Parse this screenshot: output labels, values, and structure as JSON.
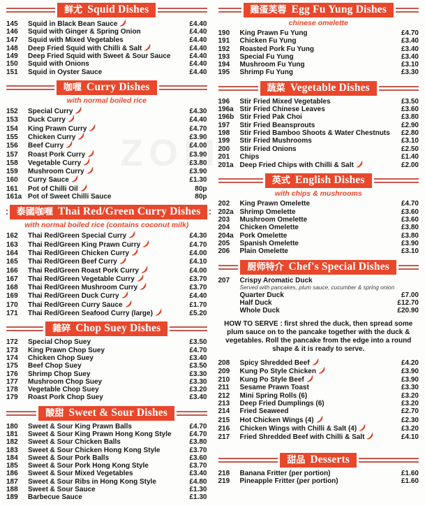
{
  "watermark": "ZOM",
  "colors": {
    "banner_red": "#e8472b",
    "rule_red": "#c4584c",
    "subtitle_red": "#e8472b",
    "chilli_red": "#dd3b1f",
    "text": "#161616"
  },
  "icons": {
    "chilli": "chilli-icon (red chilli pepper = spicy dish)"
  },
  "columns": [
    {
      "name": "left",
      "sections": [
        {
          "id": "squid",
          "zh": "鲜尤",
          "en": "Squid Dishes",
          "entries": [
            {
              "type": "item",
              "num": "145",
              "name": "Squid in Black Bean Sauce",
              "chilli": true,
              "price": "£4.40"
            },
            {
              "type": "item",
              "num": "146",
              "name": "Squid with Ginger & Spring Onion",
              "chilli": false,
              "price": "£4.40"
            },
            {
              "type": "item",
              "num": "147",
              "name": "Squid with Mixed Vegetables",
              "chilli": false,
              "price": "£4.40"
            },
            {
              "type": "item",
              "num": "148",
              "name": "Deep Fried Squid with Chilli & Salt",
              "chilli": true,
              "price": "£4.40"
            },
            {
              "type": "item",
              "num": "149",
              "name": "Deep Fried Squid with Sweet & Sour Sauce",
              "chilli": false,
              "price": "£4.40"
            },
            {
              "type": "item",
              "num": "150",
              "name": "Squid with Onions",
              "chilli": false,
              "price": "£4.40"
            },
            {
              "type": "item",
              "num": "151",
              "name": "Squid in Oyster Sauce",
              "chilli": false,
              "price": "£4.40"
            }
          ]
        },
        {
          "id": "curry",
          "zh": "咖喱",
          "en": "Curry Dishes",
          "subtitle": "with normal boiled rice",
          "entries": [
            {
              "type": "item",
              "num": "152",
              "name": "Special Curry",
              "chilli": true,
              "price": "£4.30"
            },
            {
              "type": "item",
              "num": "153",
              "name": "Duck Curry",
              "chilli": true,
              "price": "£4.40"
            },
            {
              "type": "item",
              "num": "154",
              "name": "King Prawn Curry",
              "chilli": true,
              "price": "£4.70"
            },
            {
              "type": "item",
              "num": "155",
              "name": "Chicken Curry",
              "chilli": true,
              "price": "£3.90"
            },
            {
              "type": "item",
              "num": "156",
              "name": "Beef Curry",
              "chilli": true,
              "price": "£4.00"
            },
            {
              "type": "item",
              "num": "157",
              "name": "Roast Pork Curry",
              "chilli": true,
              "price": "£3.90"
            },
            {
              "type": "item",
              "num": "158",
              "name": "Vegetable Curry",
              "chilli": true,
              "price": "£3.80"
            },
            {
              "type": "item",
              "num": "159",
              "name": "Mushroom Curry",
              "chilli": true,
              "price": "£3.90"
            },
            {
              "type": "item",
              "num": "160",
              "name": "Curry Sauce",
              "chilli": true,
              "price": "£1.30"
            },
            {
              "type": "item",
              "num": "161",
              "name": "Pot of Chilli Oil",
              "chilli": true,
              "price": "80p"
            },
            {
              "type": "item",
              "num": "161a",
              "name": "Pot of Sweet Chilli Sauce",
              "chilli": false,
              "price": "80p"
            }
          ]
        },
        {
          "id": "thai-curry",
          "zh": "泰國咖喱",
          "en": "Thai Red/Green Curry Dishes",
          "subtitle": "with normal boiled rice (contains coconut milk)",
          "entries": [
            {
              "type": "item",
              "num": "162",
              "name": "Thai Red/Green Special Curry",
              "chilli": true,
              "price": "£4.30"
            },
            {
              "type": "item",
              "num": "163",
              "name": "Thai Red/Green King Prawn Curry",
              "chilli": true,
              "price": "£4.70"
            },
            {
              "type": "item",
              "num": "164",
              "name": "Thai Red/Green Chicken Curry",
              "chilli": true,
              "price": "£4.00"
            },
            {
              "type": "item",
              "num": "165",
              "name": "Thai Red/Green Beef Curry",
              "chilli": true,
              "price": "£4.10"
            },
            {
              "type": "item",
              "num": "166",
              "name": "Thai Red/Green Roast Pork Curry",
              "chilli": true,
              "price": "£4.00"
            },
            {
              "type": "item",
              "num": "167",
              "name": "Thai Red/Green Vegetable Curry",
              "chilli": true,
              "price": "£3.70"
            },
            {
              "type": "item",
              "num": "168",
              "name": "Thai Red/Green Mushroom Curry",
              "chilli": true,
              "price": "£3.70"
            },
            {
              "type": "item",
              "num": "169",
              "name": "Thai Red/Green Duck Curry",
              "chilli": true,
              "price": "£4.40"
            },
            {
              "type": "item",
              "num": "170",
              "name": "Thai Red/Green Curry Sauce",
              "chilli": true,
              "price": "£1.70"
            },
            {
              "type": "item",
              "num": "171",
              "name": "Thai Red/Green Seafood Curry (large)",
              "chilli": true,
              "price": "£5.20"
            }
          ]
        },
        {
          "id": "chop-suey",
          "zh": "雜碎",
          "en": "Chop Suey Dishes",
          "entries": [
            {
              "type": "item",
              "num": "172",
              "name": "Special Chop Suey",
              "chilli": false,
              "price": "£3.50"
            },
            {
              "type": "item",
              "num": "173",
              "name": "King Prawn Chop Suey",
              "chilli": false,
              "price": "£4.70"
            },
            {
              "type": "item",
              "num": "174",
              "name": "Chicken Chop Suey",
              "chilli": false,
              "price": "£3.40"
            },
            {
              "type": "item",
              "num": "175",
              "name": "Beef Chop Suey",
              "chilli": false,
              "price": "£3.50"
            },
            {
              "type": "item",
              "num": "176",
              "name": "Shrimp Chop Suey",
              "chilli": false,
              "price": "£3.30"
            },
            {
              "type": "item",
              "num": "177",
              "name": "Mushroom Chop Suey",
              "chilli": false,
              "price": "£3.30"
            },
            {
              "type": "item",
              "num": "178",
              "name": "Vegetable Chop Suey",
              "chilli": false,
              "price": "£3.20"
            },
            {
              "type": "item",
              "num": "179",
              "name": "Roast Pork Chop Suey",
              "chilli": false,
              "price": "£3.40"
            }
          ]
        },
        {
          "id": "sweet-sour",
          "zh": "酸甜",
          "en": "Sweet & Sour Dishes",
          "entries": [
            {
              "type": "item",
              "num": "180",
              "name": "Sweet & Sour King Prawn Balls",
              "chilli": false,
              "price": "£4.70"
            },
            {
              "type": "item",
              "num": "181",
              "name": "Sweet & Sour King Prawn Hong Kong Style",
              "chilli": false,
              "price": "£4.70"
            },
            {
              "type": "item",
              "num": "182",
              "name": "Sweet & Sour Chicken Balls",
              "chilli": false,
              "price": "£3.80"
            },
            {
              "type": "item",
              "num": "183",
              "name": "Sweet & Sour Chicken Hong Kong Style",
              "chilli": false,
              "price": "£3.70"
            },
            {
              "type": "item",
              "num": "184",
              "name": "Sweet & Sour Pork Balls",
              "chilli": false,
              "price": "£3.60"
            },
            {
              "type": "item",
              "num": "185",
              "name": "Sweet & Sour Pork Hong Kong Style",
              "chilli": false,
              "price": "£3.70"
            },
            {
              "type": "item",
              "num": "186",
              "name": "Sweet & Sour Mixed Vegetables",
              "chilli": false,
              "price": "£3.40"
            },
            {
              "type": "item",
              "num": "187",
              "name": "Sweet & Sour Ribs in Hong Kong Style",
              "chilli": false,
              "price": "£4.80"
            },
            {
              "type": "item",
              "num": "188",
              "name": "Sweet & Sour Sauce",
              "chilli": false,
              "price": "£1.30"
            },
            {
              "type": "item",
              "num": "189",
              "name": "Barbecue Sauce",
              "chilli": false,
              "price": "£1.30"
            }
          ]
        }
      ]
    },
    {
      "name": "right",
      "sections": [
        {
          "id": "egg-fu-yung",
          "zh": "雞蛋芙蓉",
          "en": "Egg Fu Yung Dishes",
          "subtitle": "chinese omelette",
          "entries": [
            {
              "type": "item",
              "num": "190",
              "name": "King Prawn Fu Yung",
              "chilli": false,
              "price": "£4.70"
            },
            {
              "type": "item",
              "num": "191",
              "name": "Chicken Fu Yung",
              "chilli": false,
              "price": "£3.40"
            },
            {
              "type": "item",
              "num": "192",
              "name": "Roasted Pork Fu Yung",
              "chilli": false,
              "price": "£3.40"
            },
            {
              "type": "item",
              "num": "193",
              "name": "Special Fu Yung",
              "chilli": false,
              "price": "£3.40"
            },
            {
              "type": "item",
              "num": "194",
              "name": "Mushroom Fu Yung",
              "chilli": false,
              "price": "£3.10"
            },
            {
              "type": "item",
              "num": "195",
              "name": "Shrimp Fu Yung",
              "chilli": false,
              "price": "£3.30"
            }
          ]
        },
        {
          "id": "vegetable",
          "zh": "蔬菜",
          "en": "Vegetable Dishes",
          "entries": [
            {
              "type": "item",
              "num": "196",
              "name": "Stir Fried Mixed Vegetables",
              "chilli": false,
              "price": "£3.50"
            },
            {
              "type": "item",
              "num": "196a",
              "name": "Stir Fried Chinese Leaves",
              "chilli": false,
              "price": "£3.60"
            },
            {
              "type": "item",
              "num": "196b",
              "name": "Stir Fried Pak Choi",
              "chilli": false,
              "price": "£3.80"
            },
            {
              "type": "item",
              "num": "197",
              "name": "Stir Fried Beansprouts",
              "chilli": false,
              "price": "£2.90"
            },
            {
              "type": "item",
              "num": "198",
              "name": "Stir Fried Bamboo Shoots & Water Chestnuts",
              "chilli": false,
              "price": "£2.80"
            },
            {
              "type": "item",
              "num": "199",
              "name": "Stir Fried Mushrooms",
              "chilli": false,
              "price": "£3.10"
            },
            {
              "type": "item",
              "num": "200",
              "name": "Stir Fried Onions",
              "chilli": false,
              "price": "£2.50"
            },
            {
              "type": "item",
              "num": "201",
              "name": "Chips",
              "chilli": false,
              "price": "£1.40"
            },
            {
              "type": "item",
              "num": "201a",
              "name": "Deep Fried Chips with Chilli & Salt",
              "chilli": true,
              "price": "£2.00"
            }
          ]
        },
        {
          "id": "english",
          "zh": "英式",
          "en": "English Dishes",
          "subtitle": "with chips & mushrooms",
          "entries": [
            {
              "type": "item",
              "num": "202",
              "name": "King Prawn Omelette",
              "chilli": false,
              "price": "£4.70"
            },
            {
              "type": "item",
              "num": "202a",
              "name": "Shrimp Omelette",
              "chilli": false,
              "price": "£3.60"
            },
            {
              "type": "item",
              "num": "203",
              "name": "Mushroom Omelette",
              "chilli": false,
              "price": "£3.60"
            },
            {
              "type": "item",
              "num": "204",
              "name": "Chicken Omelette",
              "chilli": false,
              "price": "£3.80"
            },
            {
              "type": "item",
              "num": "204a",
              "name": "Pork Omelette",
              "chilli": false,
              "price": "£3.80"
            },
            {
              "type": "item",
              "num": "205",
              "name": "Spanish Omelette",
              "chilli": false,
              "price": "£3.90"
            },
            {
              "type": "item",
              "num": "206",
              "name": "Plain Omelette",
              "chilli": false,
              "price": "£3.10"
            }
          ]
        },
        {
          "id": "chefs-special",
          "zh": "厨师特介",
          "en": "Chef's Special Dishes",
          "entries": [
            {
              "type": "item",
              "num": "207",
              "name": "Crispy Aromatic Duck",
              "chilli": false,
              "price": "",
              "note": "Served with pancakes, plum sauce, cucumber & spring onion",
              "options": [
                {
                  "name": "Quarter Duck",
                  "price": "£7.00"
                },
                {
                  "name": "Half Duck",
                  "price": "£12.70"
                },
                {
                  "name": "Whole Duck",
                  "price": "£20.90"
                }
              ]
            },
            {
              "type": "note",
              "text": "HOW TO SERVE : first shred the duck, then spread some plum sauce on to the pancake together with the duck & vegetables. Roll the pancake from the edge into a round shape & it is ready to serve."
            },
            {
              "type": "item",
              "num": "208",
              "name": "Spicy Shredded Beef",
              "chilli": true,
              "price": "£4.20"
            },
            {
              "type": "item",
              "num": "209",
              "name": "Kung Po Style Chicken",
              "chilli": true,
              "price": "£3.90"
            },
            {
              "type": "item",
              "num": "210",
              "name": "Kung Po Style Beef",
              "chilli": true,
              "price": "£3.90"
            },
            {
              "type": "item",
              "num": "211",
              "name": "Sesame Prawn Toast",
              "chilli": false,
              "price": "£3.30"
            },
            {
              "type": "item",
              "num": "212",
              "name": "Mini Spring Rolls (6)",
              "chilli": false,
              "price": "£3.20"
            },
            {
              "type": "item",
              "num": "213",
              "name": "Deep Fried Dumplings (6)",
              "chilli": false,
              "price": "£3.20"
            },
            {
              "type": "item",
              "num": "214",
              "name": "Fried Seaweed",
              "chilli": false,
              "price": "£2.70"
            },
            {
              "type": "item",
              "num": "215",
              "name": "Hot Chicken Wings (4)",
              "chilli": true,
              "price": "£2.30"
            },
            {
              "type": "item",
              "num": "216",
              "name": "Chicken Wings with Chilli & Salt (4)",
              "chilli": true,
              "price": "£3.20"
            },
            {
              "type": "item",
              "num": "217",
              "name": "Fried Shredded Beef with Chilli & Salt",
              "chilli": true,
              "price": "£4.10"
            }
          ]
        },
        {
          "id": "desserts",
          "zh": "甜品",
          "en": "Desserts",
          "entries": [
            {
              "type": "item",
              "num": "218",
              "name": "Banana Fritter (per portion)",
              "chilli": false,
              "price": "£1.60"
            },
            {
              "type": "item",
              "num": "219",
              "name": "Pineapple Fritter (per portion)",
              "chilli": false,
              "price": "£1.60"
            }
          ]
        }
      ]
    }
  ]
}
